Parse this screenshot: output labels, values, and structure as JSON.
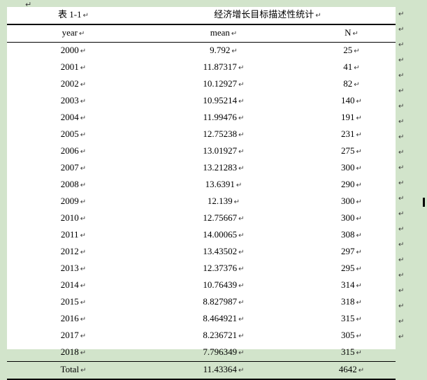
{
  "colors": {
    "page_background": "#d2e4cb",
    "paper": "#ffffff",
    "rule": "#000000"
  },
  "marks": {
    "paragraph": "↵",
    "cell_end": "↵",
    "row_end": "↵"
  },
  "table": {
    "caption_label": "表 1-1",
    "caption_title": "经济增长目标描述性统计",
    "headers": {
      "year": "year",
      "mean": "mean",
      "n": "N"
    },
    "rows": [
      [
        "2000",
        "9.792",
        "25"
      ],
      [
        "2001",
        "11.87317",
        "41"
      ],
      [
        "2002",
        "10.12927",
        "82"
      ],
      [
        "2003",
        "10.95214",
        "140"
      ],
      [
        "2004",
        "11.99476",
        "191"
      ],
      [
        "2005",
        "12.75238",
        "231"
      ],
      [
        "2006",
        "13.01927",
        "275"
      ],
      [
        "2007",
        "13.21283",
        "300"
      ],
      [
        "2008",
        "13.6391",
        "290"
      ],
      [
        "2009",
        "12.139",
        "300"
      ],
      [
        "2010",
        "12.75667",
        "300"
      ],
      [
        "2011",
        "14.00065",
        "308"
      ],
      [
        "2012",
        "13.43502",
        "297"
      ],
      [
        "2013",
        "12.37376",
        "295"
      ],
      [
        "2014",
        "10.76439",
        "314"
      ],
      [
        "2015",
        "8.827987",
        "318"
      ],
      [
        "2016",
        "8.464921",
        "315"
      ],
      [
        "2017",
        "8.236721",
        "305"
      ],
      [
        "2018",
        "7.796349",
        "315"
      ]
    ],
    "total_row": [
      "Total",
      "11.43364",
      "4642"
    ]
  }
}
